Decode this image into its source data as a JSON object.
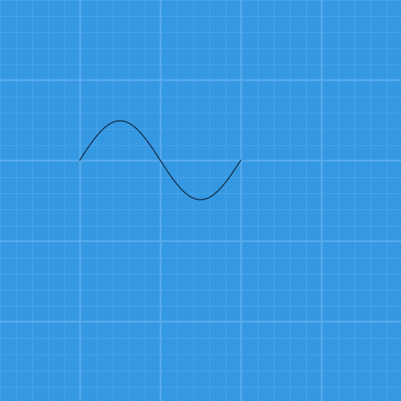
{
  "canvas": {
    "background_color": "#3598e2",
    "minor_grid_color": "#4aa3e7",
    "major_grid_color": "#5caef0",
    "grid_visible": true
  },
  "wave": {
    "shape": "sine",
    "cycles": 1,
    "stroke_color": "#0f2233",
    "starts_at": "zero-crossing-rising"
  }
}
